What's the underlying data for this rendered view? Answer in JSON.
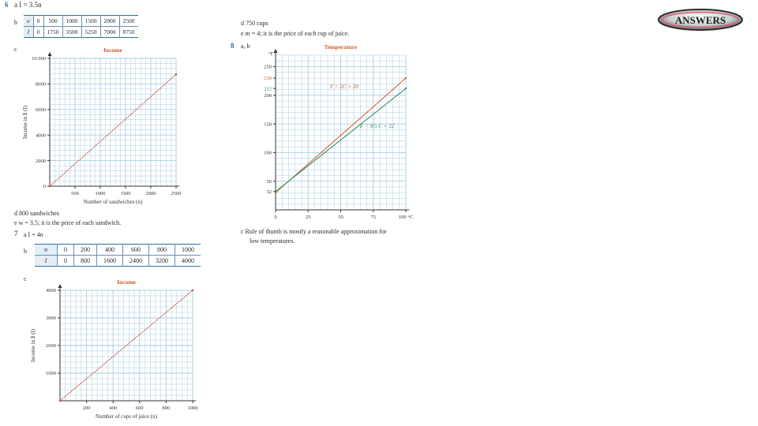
{
  "q6": {
    "num": "6",
    "a": "a  I = 3.5n",
    "b_label": "b",
    "table": {
      "row1": [
        "n",
        "0",
        "500",
        "1000",
        "1500",
        "2000",
        "2500"
      ],
      "row2": [
        "I",
        "0",
        "1750",
        "3500",
        "5250",
        "7000",
        "8750"
      ]
    },
    "c_label": "c",
    "d": "d  800 sandwiches",
    "e": "e  w = 3.5; it is the price of each sandwich."
  },
  "q7": {
    "num": "7",
    "a": "a  I = 4n",
    "b_label": "b",
    "table": {
      "row1": [
        "n",
        "0",
        "200",
        "400",
        "600",
        "800",
        "1000"
      ],
      "row2": [
        "I",
        "0",
        "800",
        "1600",
        "2400",
        "3200",
        "4000"
      ]
    },
    "c_label": "c",
    "d": "d  750 cups",
    "e": "e  m = 4; it is the price of each cup of juice."
  },
  "q8": {
    "num": "8",
    "ab": "a, b",
    "c": "c  Rule of thumb is mostly a reasonable approximation for",
    "c2": "low temperatures."
  },
  "logo_text": "ANSWERS",
  "chart_data": [
    {
      "type": "line",
      "title": "Income",
      "xlabel": "Number of sandwiches (n)",
      "ylabel": "Income in $ (I)",
      "xlim": [
        0,
        2500
      ],
      "ylim": [
        0,
        10000
      ],
      "x_ticks": [
        "500",
        "1000",
        "1500",
        "2000",
        "2500"
      ],
      "y_ticks": [
        "0",
        "2000",
        "4000",
        "6000",
        "8000",
        "10 000"
      ],
      "series": [
        {
          "x": [
            0,
            2500
          ],
          "y": [
            0,
            8750
          ]
        }
      ],
      "grid": true
    },
    {
      "type": "line",
      "title": "Income",
      "xlabel": "Number of cups of juice (n)",
      "ylabel": "Income in $ (I)",
      "xlim": [
        0,
        1000
      ],
      "ylim": [
        0,
        4000
      ],
      "x_ticks": [
        "200",
        "400",
        "600",
        "800",
        "1000"
      ],
      "y_ticks": [
        "1000",
        "2000",
        "3000",
        "4000"
      ],
      "series": [
        {
          "x": [
            0,
            1000
          ],
          "y": [
            0,
            4000
          ]
        }
      ],
      "grid": true
    },
    {
      "type": "line",
      "title": "Temperature",
      "xlabel": "°C",
      "ylabel": "°F",
      "xlim": [
        0,
        100
      ],
      "ylim": [
        0,
        270
      ],
      "x_ticks": [
        "0",
        "25",
        "50",
        "75",
        "100 °C"
      ],
      "y_ticks": [
        "32",
        "50",
        "100",
        "150",
        "200",
        "212",
        "230",
        "250"
      ],
      "series": [
        {
          "name": "F = 2C + 30",
          "x": [
            0,
            100
          ],
          "y": [
            30,
            230
          ],
          "color": "#d2592a"
        },
        {
          "name": "F = 9/5 C + 32",
          "x": [
            0,
            100
          ],
          "y": [
            32,
            212
          ],
          "color": "#2e8a5a"
        }
      ],
      "grid": true
    }
  ]
}
